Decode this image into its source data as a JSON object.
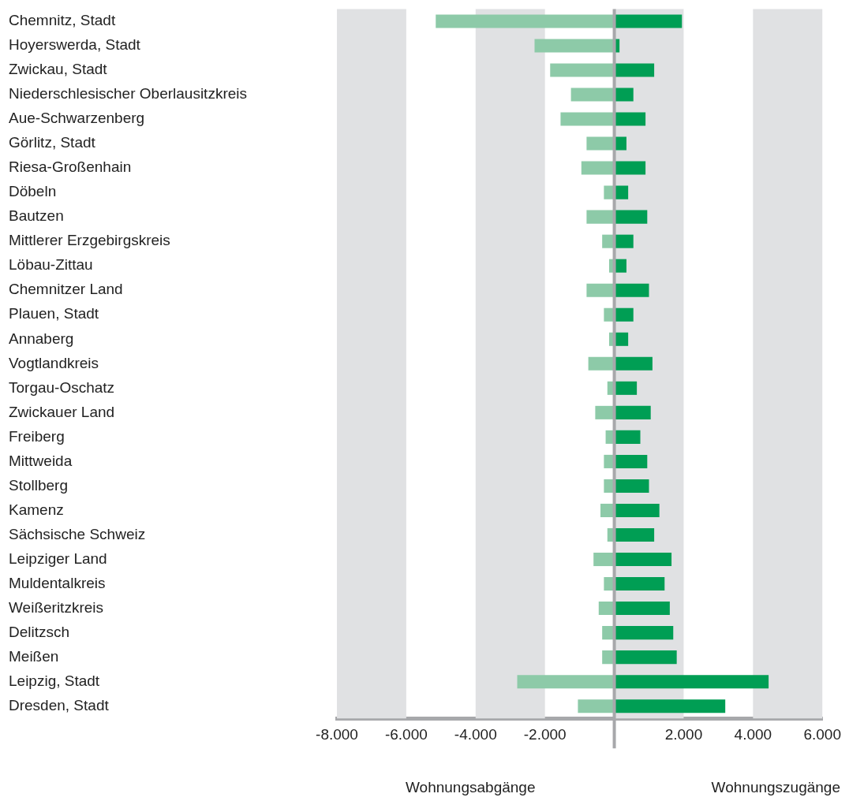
{
  "chart_data": {
    "type": "bar",
    "orientation": "horizontal",
    "stacked": true,
    "categories": [
      "Chemnitz, Stadt",
      "Hoyerswerda, Stadt",
      "Zwickau, Stadt",
      "Niederschlesischer Oberlausitzkreis",
      "Aue-Schwarzenberg",
      "Görlitz, Stadt",
      "Riesa-Großenhain",
      "Döbeln",
      "Bautzen",
      "Mittlerer Erzgebirgskreis",
      "Löbau-Zittau",
      "Chemnitzer Land",
      "Plauen, Stadt",
      "Annaberg",
      "Vogtlandkreis",
      "Torgau-Oschatz",
      "Zwickauer Land",
      "Freiberg",
      "Mittweida",
      "Stollberg",
      "Kamenz",
      "Sächsische Schweiz",
      "Leipziger Land",
      "Muldentalkreis",
      "Weißeritzkreis",
      "Delitzsch",
      "Meißen",
      "Leipzig, Stadt",
      "Dresden, Stadt"
    ],
    "series": [
      {
        "color": "#8dcaa8",
        "values": [
          -5150,
          -2300,
          -1850,
          -1250,
          -1550,
          -800,
          -950,
          -300,
          -800,
          -350,
          -150,
          -800,
          -300,
          -150,
          -750,
          -200,
          -550,
          -250,
          -300,
          -300,
          -400,
          -200,
          -600,
          -300,
          -450,
          -350,
          -350,
          -2800,
          -1050
        ]
      },
      {
        "color": "#009e54",
        "values": [
          1950,
          150,
          1150,
          550,
          900,
          350,
          900,
          400,
          950,
          550,
          350,
          1000,
          550,
          400,
          1100,
          650,
          1050,
          750,
          950,
          1000,
          1300,
          1150,
          1650,
          1450,
          1600,
          1700,
          1800,
          4450,
          3200
        ]
      }
    ],
    "xlim": [
      -8000,
      6000
    ],
    "xticks": [
      {
        "value": -8000,
        "label": "-8.000"
      },
      {
        "value": -6000,
        "label": "-6.000"
      },
      {
        "value": -4000,
        "label": "-4.000"
      },
      {
        "value": -2000,
        "label": "-2.000"
      },
      {
        "value": 2000,
        "label": "2.000"
      },
      {
        "value": 4000,
        "label": "4.000"
      },
      {
        "value": 6000,
        "label": "6.000"
      }
    ],
    "bands": [
      {
        "axis": "x",
        "from": -8000,
        "to": -6000,
        "color": "#e0e1e3"
      },
      {
        "axis": "x",
        "from": -4000,
        "to": -2000,
        "color": "#e0e1e3"
      },
      {
        "axis": "x",
        "from": 0,
        "to": 2000,
        "color": "#e0e1e3"
      },
      {
        "axis": "x",
        "from": 4000,
        "to": 6000,
        "color": "#e0e1e3"
      }
    ],
    "ref_lines": [
      {
        "axis": "x",
        "value": 0,
        "color": "#a7a8ab"
      }
    ],
    "grid": false,
    "legend": false,
    "annotations": [
      "Wohnungsabgänge",
      "Wohnungszugänge"
    ]
  }
}
